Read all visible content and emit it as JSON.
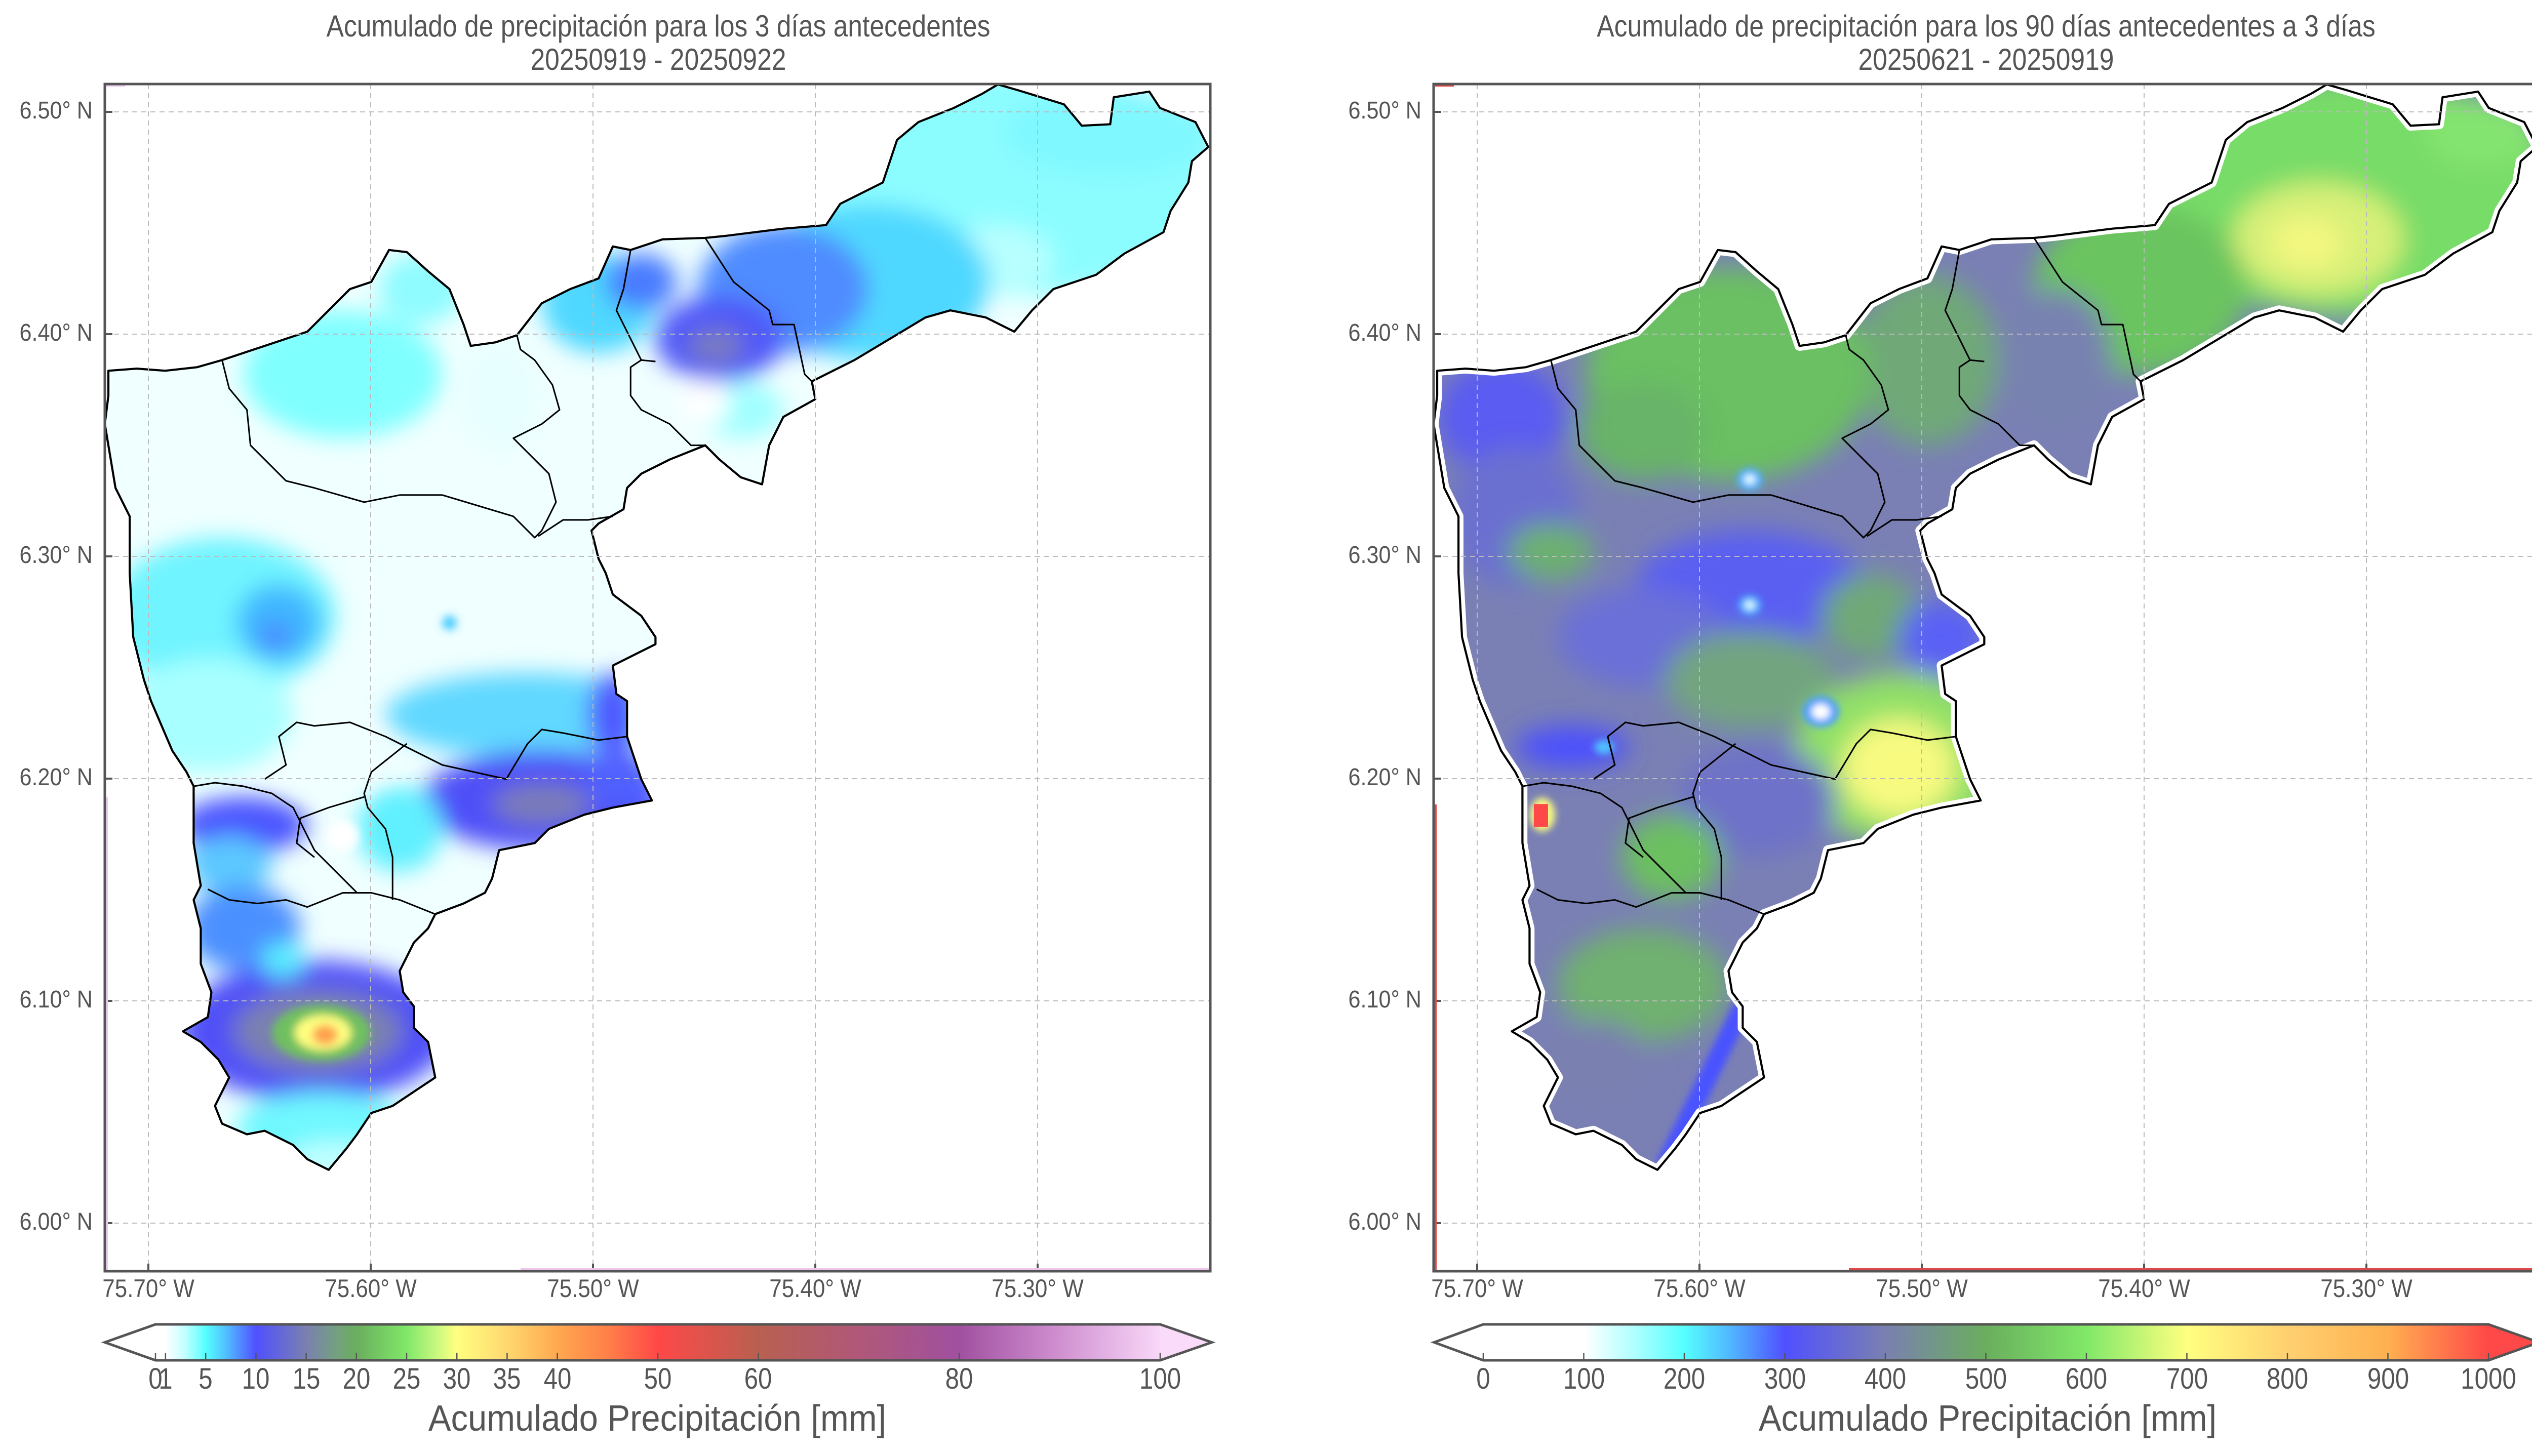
{
  "panels": [
    {
      "id": "left",
      "title": "Acumulado de precipitación para los 3 días antecedentes",
      "subtitle": "20250919 - 20250922",
      "colorbar": {
        "label": "Acumulado Precipitación [mm]",
        "range": [
          0,
          100
        ],
        "extend": "both",
        "extend_min_color": "#ffffff",
        "extend_max_color": "#fadcfa",
        "ticks": [
          {
            "value": 0,
            "label": "0"
          },
          {
            "value": 1,
            "label": "1"
          },
          {
            "value": 5,
            "label": "5"
          },
          {
            "value": 10,
            "label": "10"
          },
          {
            "value": 15,
            "label": "15"
          },
          {
            "value": 20,
            "label": "20"
          },
          {
            "value": 25,
            "label": "25"
          },
          {
            "value": 30,
            "label": "30"
          },
          {
            "value": 35,
            "label": "35"
          },
          {
            "value": 40,
            "label": "40"
          },
          {
            "value": 50,
            "label": "50"
          },
          {
            "value": 60,
            "label": "60"
          },
          {
            "value": 80,
            "label": "80"
          },
          {
            "value": 100,
            "label": "100"
          }
        ],
        "colormap": [
          {
            "v": 0,
            "c": "#ffffff"
          },
          {
            "v": 1,
            "c": "#ffffff"
          },
          {
            "v": 3,
            "c": "#c0ffff"
          },
          {
            "v": 5,
            "c": "#55ffff"
          },
          {
            "v": 7,
            "c": "#50c0ff"
          },
          {
            "v": 10,
            "c": "#5050ff"
          },
          {
            "v": 15,
            "c": "#7a80b0"
          },
          {
            "v": 18,
            "c": "#74a080"
          },
          {
            "v": 20,
            "c": "#6aae5e"
          },
          {
            "v": 25,
            "c": "#80e868"
          },
          {
            "v": 28,
            "c": "#c8f880"
          },
          {
            "v": 30,
            "c": "#ffff80"
          },
          {
            "v": 35,
            "c": "#ffd870"
          },
          {
            "v": 40,
            "c": "#ffa850"
          },
          {
            "v": 45,
            "c": "#ff8048"
          },
          {
            "v": 50,
            "c": "#ff4848"
          },
          {
            "v": 60,
            "c": "#b86050"
          },
          {
            "v": 70,
            "c": "#b05878"
          },
          {
            "v": 80,
            "c": "#a050a0"
          },
          {
            "v": 90,
            "c": "#d090d0"
          },
          {
            "v": 100,
            "c": "#f8d8f8"
          }
        ]
      }
    },
    {
      "id": "right",
      "title": "Acumulado de precipitación para los 90 días antecedentes a 3 días",
      "subtitle": "20250621 - 20250919",
      "colorbar": {
        "label": "Acumulado Precipitación [mm]",
        "range": [
          0,
          1000
        ],
        "extend": "both",
        "extend_min_color": "#ffffff",
        "extend_max_color": "#ff4848",
        "ticks": [
          {
            "value": 0,
            "label": "0"
          },
          {
            "value": 100,
            "label": "100"
          },
          {
            "value": 200,
            "label": "200"
          },
          {
            "value": 300,
            "label": "300"
          },
          {
            "value": 400,
            "label": "400"
          },
          {
            "value": 500,
            "label": "500"
          },
          {
            "value": 600,
            "label": "600"
          },
          {
            "value": 700,
            "label": "700"
          },
          {
            "value": 800,
            "label": "800"
          },
          {
            "value": 900,
            "label": "900"
          },
          {
            "value": 1000,
            "label": "1000"
          }
        ],
        "colormap": [
          {
            "v": 0,
            "c": "#ffffff"
          },
          {
            "v": 100,
            "c": "#ffffff"
          },
          {
            "v": 150,
            "c": "#b0ffff"
          },
          {
            "v": 200,
            "c": "#55ffff"
          },
          {
            "v": 250,
            "c": "#50b0ff"
          },
          {
            "v": 300,
            "c": "#5050ff"
          },
          {
            "v": 400,
            "c": "#7a80b0"
          },
          {
            "v": 500,
            "c": "#6aae5e"
          },
          {
            "v": 600,
            "c": "#80e868"
          },
          {
            "v": 700,
            "c": "#ffff80"
          },
          {
            "v": 800,
            "c": "#ffd070"
          },
          {
            "v": 900,
            "c": "#ffb050"
          },
          {
            "v": 1000,
            "c": "#ff4848"
          }
        ]
      }
    }
  ],
  "lat_ticks": [
    {
      "value": 6.5,
      "label": "6.50° N"
    },
    {
      "value": 6.4,
      "label": "6.40° N"
    },
    {
      "value": 6.3,
      "label": "6.30° N"
    },
    {
      "value": 6.2,
      "label": "6.20° N"
    },
    {
      "value": 6.1,
      "label": "6.10° N"
    },
    {
      "value": 6.0,
      "label": "6.00° N"
    }
  ],
  "lon_ticks": [
    {
      "value": 75.7,
      "label": "75.70° W"
    },
    {
      "value": 75.6,
      "label": "75.60° W"
    },
    {
      "value": 75.5,
      "label": "75.50° W"
    },
    {
      "value": 75.4,
      "label": "75.40° W"
    },
    {
      "value": 75.3,
      "label": "75.30° W"
    }
  ],
  "colors": {
    "axis": "#555555",
    "text": "#555555",
    "grid": "#bbbbbb",
    "boundary": "#000000",
    "left_edge_accent": "#f0c8f0",
    "right_edge_accent": "#e04848"
  }
}
